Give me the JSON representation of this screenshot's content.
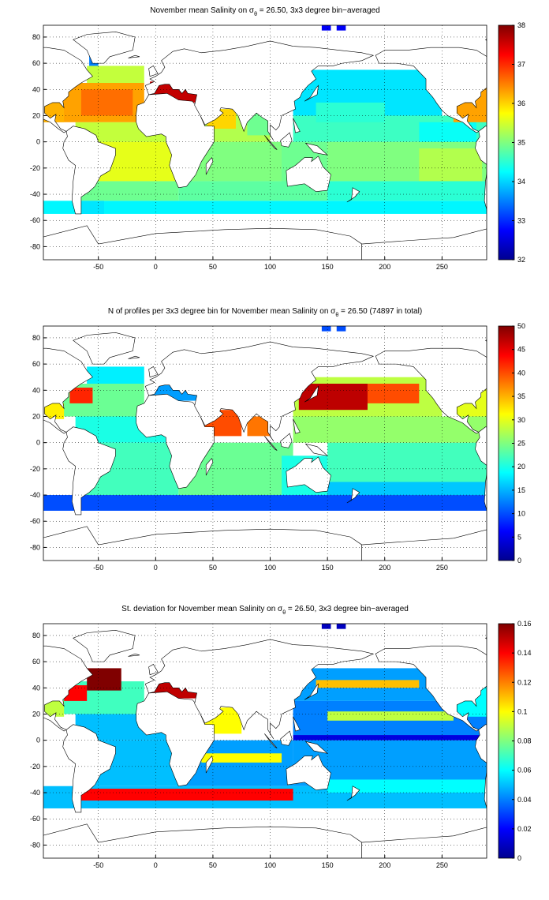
{
  "chart_data": [
    {
      "type": "heatmap",
      "colormap": "jet",
      "grid": true,
      "title": [
        "November mean Salinity on σ",
        "θ",
        " = 26.50, 3x3 degree bin−averaged"
      ],
      "xlim": [
        -98,
        289
      ],
      "ylim": [
        -90,
        89
      ],
      "xticks": [
        -50,
        0,
        50,
        100,
        150,
        200,
        250
      ],
      "yticks": [
        -80,
        -60,
        -40,
        -20,
        0,
        20,
        40,
        60,
        80
      ],
      "clim": [
        32,
        38
      ],
      "cticks": [
        32,
        33,
        34,
        35,
        36,
        37,
        38
      ],
      "cells": [
        [
          -98,
          290,
          -55,
          -45,
          34.2
        ],
        [
          -70,
          20,
          -45,
          -30,
          34.9
        ],
        [
          20,
          150,
          -45,
          -30,
          34.8
        ],
        [
          150,
          290,
          -45,
          -30,
          34.5
        ],
        [
          -55,
          20,
          -30,
          0,
          35.6
        ],
        [
          20,
          120,
          -30,
          0,
          35.0
        ],
        [
          150,
          290,
          -30,
          0,
          35.0
        ],
        [
          230,
          285,
          -30,
          -5,
          35.3
        ],
        [
          110,
          150,
          -30,
          0,
          34.9
        ],
        [
          120,
          290,
          0,
          20,
          34.6
        ],
        [
          230,
          280,
          0,
          15,
          34.3
        ],
        [
          120,
          250,
          20,
          55,
          34.1
        ],
        [
          140,
          200,
          15,
          30,
          34.5
        ],
        [
          40,
          100,
          0,
          25,
          35.3
        ],
        [
          45,
          70,
          10,
          25,
          36.0
        ],
        [
          80,
          100,
          5,
          25,
          34.9
        ],
        [
          -70,
          20,
          0,
          15,
          35.4
        ],
        [
          -98,
          -10,
          15,
          45,
          36.3
        ],
        [
          -65,
          -20,
          20,
          40,
          36.6
        ],
        [
          -60,
          -10,
          45,
          58,
          35.4
        ],
        [
          -98,
          -80,
          15,
          30,
          36.2
        ],
        [
          260,
          290,
          15,
          45,
          36.3
        ],
        [
          -5,
          40,
          30,
          46,
          37.6
        ],
        [
          -58,
          -50,
          58,
          70,
          33.5
        ],
        [
          145,
          153,
          85,
          89,
          32.7
        ],
        [
          158,
          166,
          85,
          89,
          32.7
        ],
        [
          -70,
          -45,
          -55,
          -45,
          34.1
        ]
      ]
    },
    {
      "type": "heatmap",
      "colormap": "jet",
      "grid": true,
      "title": [
        "N of profiles per 3x3 degree bin for November mean Salinity on σ",
        "θ",
        " = 26.50 (74897 in total)"
      ],
      "xlim": [
        -98,
        289
      ],
      "ylim": [
        -90,
        89
      ],
      "xticks": [
        -50,
        0,
        50,
        100,
        150,
        200,
        250
      ],
      "yticks": [
        -80,
        -60,
        -40,
        -20,
        0,
        20,
        40,
        60,
        80
      ],
      "clim": [
        0,
        50
      ],
      "cticks": [
        0,
        5,
        10,
        15,
        20,
        25,
        30,
        35,
        40,
        45,
        50
      ],
      "cells": [
        [
          -98,
          290,
          -52,
          -40,
          10
        ],
        [
          -70,
          20,
          -40,
          0,
          22
        ],
        [
          20,
          120,
          -40,
          0,
          24
        ],
        [
          150,
          290,
          -40,
          0,
          22
        ],
        [
          110,
          150,
          -40,
          -10,
          20
        ],
        [
          -70,
          20,
          0,
          20,
          20
        ],
        [
          -98,
          -10,
          20,
          45,
          24
        ],
        [
          -75,
          -55,
          30,
          42,
          42
        ],
        [
          -98,
          -80,
          18,
          30,
          32
        ],
        [
          260,
          290,
          18,
          45,
          30
        ],
        [
          120,
          290,
          0,
          20,
          26
        ],
        [
          120,
          250,
          20,
          50,
          28
        ],
        [
          125,
          185,
          25,
          45,
          47
        ],
        [
          185,
          230,
          30,
          45,
          40
        ],
        [
          40,
          75,
          5,
          25,
          40
        ],
        [
          80,
          100,
          5,
          20,
          38
        ],
        [
          -60,
          -10,
          45,
          58,
          18
        ],
        [
          -5,
          40,
          32,
          44,
          14
        ],
        [
          150,
          290,
          -40,
          -30,
          16
        ],
        [
          145,
          153,
          85,
          89,
          10
        ],
        [
          158,
          166,
          85,
          89,
          10
        ]
      ]
    },
    {
      "type": "heatmap",
      "colormap": "jet",
      "grid": true,
      "title": [
        "St. deviation for November mean Salinity on σ",
        "θ",
        " = 26.50, 3x3 degree bin−averaged"
      ],
      "xlim": [
        -98,
        289
      ],
      "ylim": [
        -90,
        89
      ],
      "xticks": [
        -50,
        0,
        50,
        100,
        150,
        200,
        250
      ],
      "yticks": [
        -80,
        -60,
        -40,
        -20,
        0,
        20,
        40,
        60,
        80
      ],
      "clim": [
        0,
        0.16
      ],
      "cticks": [
        0,
        0.02,
        0.04,
        0.06,
        0.08,
        0.1,
        0.12,
        0.14,
        0.16
      ],
      "cells": [
        [
          -98,
          290,
          -52,
          -35,
          0.05
        ],
        [
          -65,
          120,
          -46,
          -37,
          0.14
        ],
        [
          -70,
          20,
          -35,
          0,
          0.05
        ],
        [
          20,
          120,
          -35,
          0,
          0.045
        ],
        [
          40,
          110,
          -17,
          -10,
          0.1
        ],
        [
          120,
          290,
          -35,
          0,
          0.045
        ],
        [
          120,
          290,
          0,
          4,
          0.015
        ],
        [
          -70,
          20,
          0,
          20,
          0.05
        ],
        [
          -98,
          -10,
          20,
          45,
          0.07
        ],
        [
          -80,
          -60,
          30,
          42,
          0.14
        ],
        [
          -60,
          -30,
          38,
          55,
          0.16
        ],
        [
          -98,
          -80,
          18,
          30,
          0.09
        ],
        [
          120,
          290,
          4,
          30,
          0.04
        ],
        [
          150,
          260,
          15,
          22,
          0.09
        ],
        [
          120,
          260,
          30,
          55,
          0.045
        ],
        [
          140,
          230,
          40,
          46,
          0.11
        ],
        [
          40,
          75,
          5,
          25,
          0.1
        ],
        [
          -5,
          40,
          32,
          44,
          0.15
        ],
        [
          150,
          290,
          -40,
          -30,
          0.06
        ],
        [
          145,
          153,
          85,
          89,
          0.01
        ],
        [
          158,
          166,
          85,
          89,
          0.01
        ],
        [
          260,
          290,
          18,
          45,
          0.06
        ]
      ]
    }
  ]
}
